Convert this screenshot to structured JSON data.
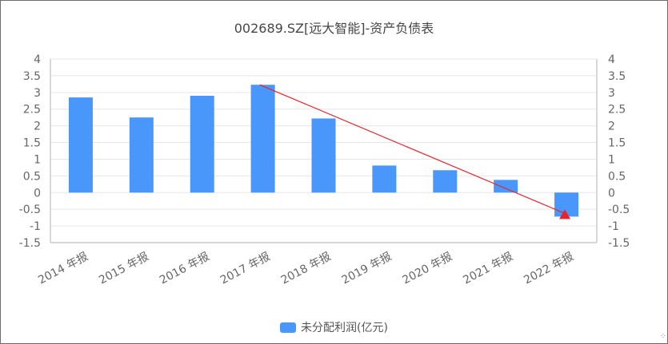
{
  "title": "002689.SZ[远大智能]-资产负债表",
  "colors": {
    "bar": "#4a97fc",
    "trend_line": "#e8232a",
    "grid": "#e6e6e6",
    "axis": "#cccccc",
    "tick_text": "#666666"
  },
  "legend": {
    "label": "未分配利润(亿元)"
  },
  "corner_icon": "expand-icon",
  "chart_data": {
    "type": "bar",
    "title": "002689.SZ[远大智能]-资产负债表",
    "xlabel": "",
    "ylabel": "",
    "categories": [
      "2014 年报",
      "2015 年报",
      "2016 年报",
      "2017 年报",
      "2018 年报",
      "2019 年报",
      "2020 年报",
      "2021 年报",
      "2022 年报"
    ],
    "series": [
      {
        "name": "未分配利润(亿元)",
        "values": [
          2.85,
          2.25,
          2.9,
          3.23,
          2.22,
          0.81,
          0.67,
          0.38,
          -0.72
        ]
      }
    ],
    "ylim": [
      -1.5,
      4
    ],
    "y_ticks": [
      "4",
      "3.5",
      "3",
      "2.5",
      "2",
      "1.5",
      "1",
      "0.5",
      "0",
      "-0.5",
      "-1",
      "-1.5"
    ],
    "y_ticks_right": [
      "4",
      "3.5",
      "3",
      "2.5",
      "2",
      "1.5",
      "1",
      "0.5",
      "0",
      "-0.5",
      "-1",
      "-1.5"
    ],
    "grid": true,
    "legend_position": "bottom",
    "annotations": [
      {
        "type": "arrow",
        "from_category": "2017 年报",
        "from_value": 3.23,
        "to_category": "2022 年报",
        "to_value": -0.72,
        "color": "#e8232a",
        "meaning": "declining trend"
      }
    ]
  }
}
